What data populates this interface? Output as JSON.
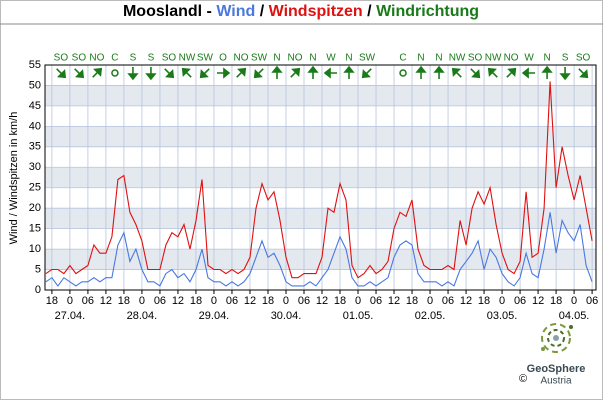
{
  "chart_data": {
    "type": "line",
    "station": "Mooslandl",
    "separators": [
      "-",
      "/"
    ],
    "direction_name": "Windrichtung",
    "y_label": "Wind / Windspitzen in km/h",
    "x": [
      -8,
      -6,
      -4,
      -2,
      0,
      2,
      4,
      6,
      8,
      10,
      12,
      14,
      16,
      18,
      20,
      22,
      24,
      26,
      28,
      30,
      32,
      34,
      36,
      38,
      40,
      42,
      44,
      46,
      48,
      50,
      52,
      54,
      56,
      58,
      60,
      62,
      64,
      66,
      68,
      70,
      72,
      74,
      76,
      78,
      80,
      82,
      84,
      86,
      88,
      90,
      92,
      94,
      96,
      98,
      100,
      102,
      104,
      106,
      108,
      110,
      112,
      114,
      116,
      118,
      120,
      122,
      124,
      126,
      128,
      130,
      132,
      134,
      136,
      138,
      140,
      142,
      144,
      146,
      148,
      150,
      152,
      154,
      156,
      158,
      160,
      162,
      164,
      166,
      168,
      170,
      172,
      174
    ],
    "series": [
      {
        "name": "Wind",
        "color": "#4a78e0",
        "values": [
          2,
          3,
          1,
          3,
          2,
          1,
          2,
          2,
          3,
          2,
          3,
          3,
          11,
          14,
          7,
          10,
          5,
          2,
          2,
          1,
          4,
          5,
          3,
          4,
          2,
          5,
          10,
          3,
          2,
          2,
          1,
          2,
          1,
          2,
          4,
          8,
          12,
          8,
          9,
          6,
          2,
          1,
          1,
          1,
          2,
          1,
          3,
          5,
          9,
          13,
          10,
          3,
          1,
          1,
          2,
          1,
          2,
          3,
          8,
          11,
          12,
          11,
          4,
          2,
          2,
          2,
          1,
          2,
          1,
          5,
          7,
          9,
          12,
          5,
          10,
          8,
          4,
          2,
          1,
          3,
          9,
          4,
          3,
          10,
          19,
          9,
          17,
          14,
          12,
          16,
          6,
          2
        ]
      },
      {
        "name": "Windspitzen",
        "color": "#e01010",
        "values": [
          4,
          5,
          5,
          4,
          6,
          4,
          5,
          6,
          11,
          9,
          9,
          13,
          27,
          28,
          19,
          16,
          12,
          5,
          5,
          5,
          11,
          14,
          13,
          16,
          10,
          17,
          27,
          6,
          5,
          5,
          4,
          5,
          4,
          5,
          8,
          20,
          26,
          22,
          24,
          17,
          8,
          3,
          3,
          4,
          4,
          4,
          8,
          20,
          19,
          26,
          22,
          6,
          3,
          4,
          6,
          4,
          5,
          7,
          15,
          19,
          18,
          22,
          10,
          6,
          5,
          5,
          5,
          6,
          5,
          17,
          11,
          20,
          24,
          21,
          25,
          16,
          9,
          5,
          4,
          7,
          24,
          8,
          9,
          20,
          51,
          25,
          35,
          28,
          22,
          28,
          20,
          12
        ]
      }
    ],
    "direction_color": "#1a7a1a",
    "directions": {
      "x": [
        -3,
        3,
        9,
        15,
        21,
        27,
        33,
        39,
        45,
        51,
        57,
        63,
        69,
        75,
        81,
        87,
        93,
        99,
        105,
        111,
        117,
        123,
        129,
        135,
        141,
        147,
        153,
        159,
        165,
        171
      ],
      "labels": [
        "SO",
        "SO",
        "NO",
        "C",
        "S",
        "S",
        "SO",
        "NW",
        "SW",
        "O",
        "NO",
        "SW",
        "N",
        "NO",
        "N",
        "W",
        "N",
        "SW",
        null,
        "C",
        "N",
        "N",
        "NW",
        "SO",
        "NW",
        "NO",
        "W",
        "N",
        "S",
        "SO"
      ]
    },
    "xlim": [
      -8.3,
      175.3
    ],
    "ylim": [
      0,
      55
    ],
    "yticks": [
      0,
      5,
      10,
      15,
      20,
      25,
      30,
      35,
      40,
      45,
      50,
      55
    ],
    "xticks": [
      {
        "value": -6,
        "label": "18"
      },
      {
        "value": 0,
        "label": "0"
      },
      {
        "value": 6,
        "label": "06"
      },
      {
        "value": 12,
        "label": "12"
      },
      {
        "value": 18,
        "label": "18"
      },
      {
        "value": 24,
        "label": "0"
      },
      {
        "value": 30,
        "label": "06"
      },
      {
        "value": 36,
        "label": "12"
      },
      {
        "value": 42,
        "label": "18"
      },
      {
        "value": 48,
        "label": "0"
      },
      {
        "value": 54,
        "label": "06"
      },
      {
        "value": 60,
        "label": "12"
      },
      {
        "value": 66,
        "label": "18"
      },
      {
        "value": 72,
        "label": "0"
      },
      {
        "value": 78,
        "label": "06"
      },
      {
        "value": 84,
        "label": "12"
      },
      {
        "value": 90,
        "label": "18"
      },
      {
        "value": 96,
        "label": "0"
      },
      {
        "value": 102,
        "label": "06"
      },
      {
        "value": 108,
        "label": "12"
      },
      {
        "value": 114,
        "label": "18"
      },
      {
        "value": 120,
        "label": "0"
      },
      {
        "value": 126,
        "label": "06"
      },
      {
        "value": 132,
        "label": "12"
      },
      {
        "value": 138,
        "label": "18"
      },
      {
        "value": 144,
        "label": "0"
      },
      {
        "value": 150,
        "label": "06"
      },
      {
        "value": 156,
        "label": "12"
      },
      {
        "value": 162,
        "label": "18"
      },
      {
        "value": 168,
        "label": "0"
      },
      {
        "value": 174,
        "label": "06"
      }
    ],
    "date_ticks": [
      {
        "value": 0,
        "label": "27.04."
      },
      {
        "value": 24,
        "label": "28.04."
      },
      {
        "value": 48,
        "label": "29.04."
      },
      {
        "value": 72,
        "label": "30.04."
      },
      {
        "value": 96,
        "label": "01.05."
      },
      {
        "value": 120,
        "label": "02.05."
      },
      {
        "value": 144,
        "label": "03.05."
      },
      {
        "value": 168,
        "label": "04.05."
      }
    ],
    "grid": true,
    "bands": true,
    "footer": {
      "brand": "GeoSphere",
      "country": "Austria",
      "copyright": "©"
    }
  }
}
